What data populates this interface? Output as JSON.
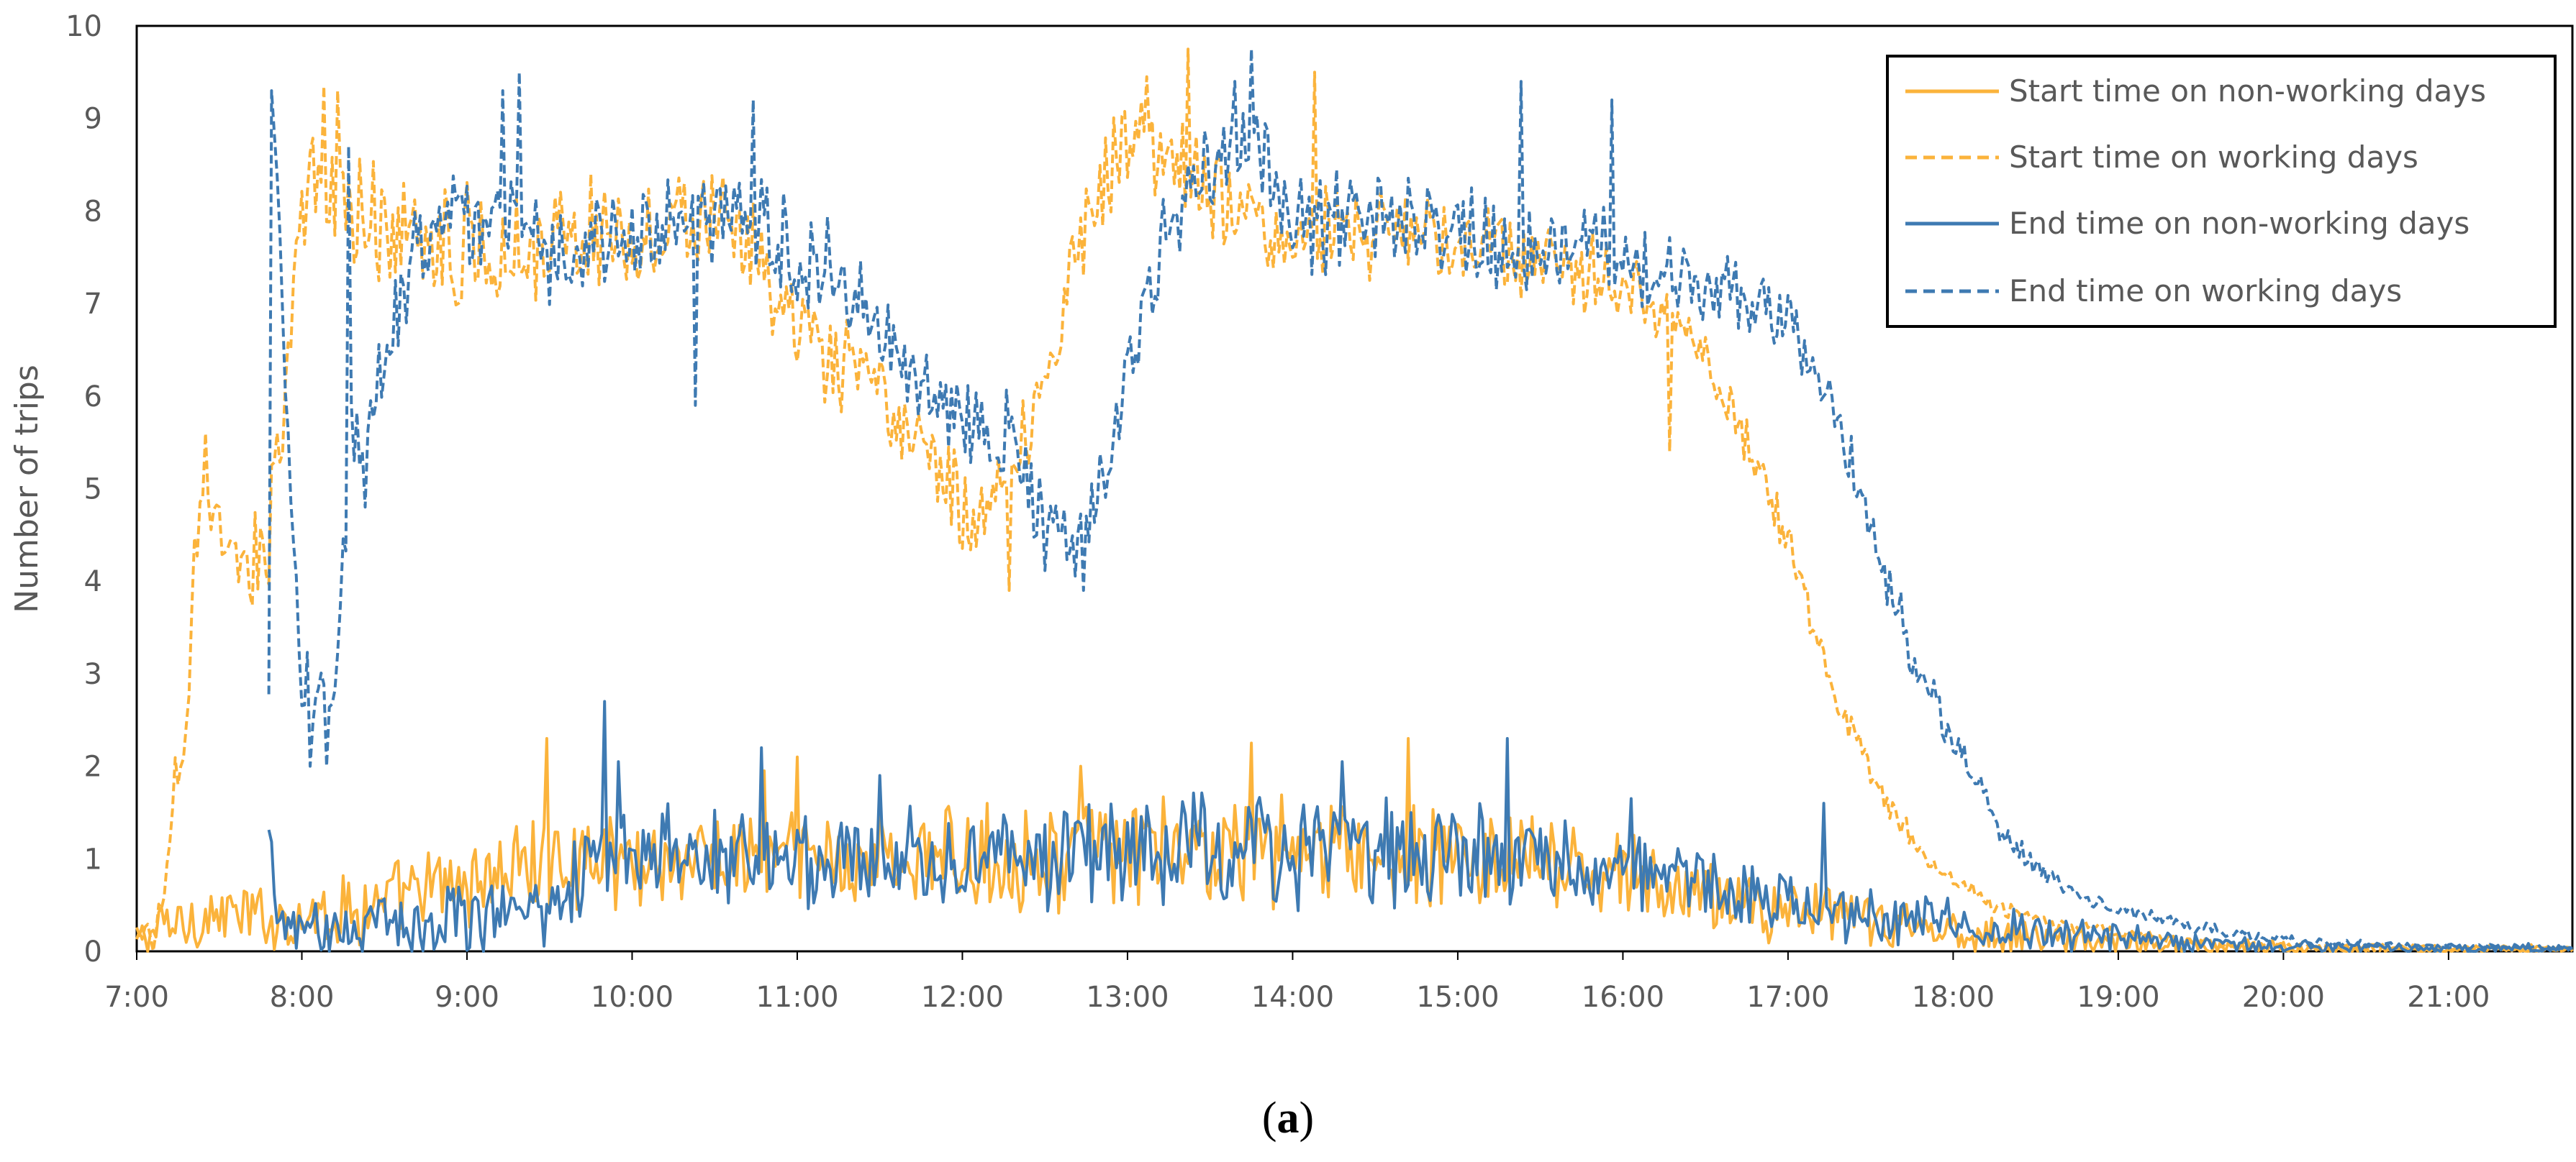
{
  "chart_data": {
    "type": "line",
    "title": "",
    "xlabel": "",
    "ylabel": "Number of trips",
    "ylim": [
      0,
      10
    ],
    "xlim_hours": [
      7.0,
      21.75
    ],
    "yticks": [
      "0",
      "1",
      "2",
      "3",
      "4",
      "5",
      "6",
      "7",
      "8",
      "9",
      "10"
    ],
    "xticks": [
      "7:00",
      "8:00",
      "9:00",
      "10:00",
      "11:00",
      "12:00",
      "13:00",
      "14:00",
      "15:00",
      "16:00",
      "17:00",
      "18:00",
      "19:00",
      "20:00",
      "21:00"
    ],
    "caption": {
      "open": "(",
      "letter": "a",
      "close": ")"
    },
    "colors": {
      "start": "#FBB33B",
      "end": "#3E7AB2"
    },
    "series": [
      {
        "name": "Start time on non-working days",
        "style": "solid",
        "color": "#FBB33B",
        "start_hour": 7.0,
        "end_hour": 21.75,
        "points": [
          [
            7.0,
            0.1
          ],
          [
            7.2,
            0.3
          ],
          [
            7.5,
            0.4
          ],
          [
            7.8,
            0.35
          ],
          [
            8.0,
            0.4
          ],
          [
            8.5,
            0.5
          ],
          [
            9.0,
            0.75
          ],
          [
            9.5,
            1.0
          ],
          [
            10.0,
            1.0
          ],
          [
            11.0,
            1.0
          ],
          [
            12.0,
            1.0
          ],
          [
            13.0,
            1.05
          ],
          [
            14.0,
            1.1
          ],
          [
            15.0,
            1.0
          ],
          [
            16.0,
            0.8
          ],
          [
            16.5,
            0.6
          ],
          [
            17.0,
            0.45
          ],
          [
            17.5,
            0.3
          ],
          [
            18.0,
            0.22
          ],
          [
            18.5,
            0.15
          ],
          [
            19.0,
            0.1
          ],
          [
            19.5,
            0.06
          ],
          [
            20.0,
            0.04
          ],
          [
            21.0,
            0.02
          ],
          [
            21.75,
            0.02
          ]
        ],
        "amp_points": [
          [
            7.0,
            0.25
          ],
          [
            8.0,
            0.3
          ],
          [
            9.0,
            0.4
          ],
          [
            10.0,
            0.45
          ],
          [
            12.0,
            0.45
          ],
          [
            14.0,
            0.5
          ],
          [
            16.0,
            0.4
          ],
          [
            17.0,
            0.3
          ],
          [
            18.0,
            0.2
          ],
          [
            19.0,
            0.1
          ],
          [
            20.0,
            0.06
          ],
          [
            21.75,
            0.04
          ]
        ],
        "spikes": [
          [
            9.48,
            2.3
          ],
          [
            10.8,
            1.95
          ],
          [
            11.0,
            2.1
          ],
          [
            12.72,
            2.0
          ],
          [
            13.75,
            2.25
          ],
          [
            14.7,
            2.3
          ]
        ]
      },
      {
        "name": "Start time on working days",
        "style": "dashed",
        "color": "#FBB33B",
        "start_hour": 7.0,
        "end_hour": 21.75,
        "points": [
          [
            7.0,
            0.1
          ],
          [
            7.1,
            0.1
          ],
          [
            7.15,
            0.4
          ],
          [
            7.22,
            1.8
          ],
          [
            7.3,
            2.5
          ],
          [
            7.35,
            4.3
          ],
          [
            7.45,
            4.5
          ],
          [
            7.55,
            4.3
          ],
          [
            7.7,
            4.0
          ],
          [
            7.8,
            4.6
          ],
          [
            7.9,
            6.2
          ],
          [
            8.0,
            7.9
          ],
          [
            8.1,
            8.3
          ],
          [
            8.25,
            8.0
          ],
          [
            8.5,
            7.9
          ],
          [
            9.0,
            7.6
          ],
          [
            9.5,
            7.7
          ],
          [
            10.0,
            7.8
          ],
          [
            10.5,
            7.9
          ],
          [
            10.75,
            7.5
          ],
          [
            11.0,
            6.6
          ],
          [
            11.5,
            6.0
          ],
          [
            11.75,
            5.4
          ],
          [
            12.0,
            4.8
          ],
          [
            12.15,
            4.7
          ],
          [
            12.3,
            5.3
          ],
          [
            12.5,
            6.2
          ],
          [
            12.7,
            7.6
          ],
          [
            12.9,
            8.6
          ],
          [
            13.1,
            8.8
          ],
          [
            13.3,
            8.6
          ],
          [
            13.5,
            8.1
          ],
          [
            14.0,
            7.8
          ],
          [
            14.5,
            7.8
          ],
          [
            15.0,
            7.6
          ],
          [
            15.5,
            7.4
          ],
          [
            16.0,
            7.2
          ],
          [
            16.3,
            6.8
          ],
          [
            16.6,
            6.2
          ],
          [
            16.8,
            5.3
          ],
          [
            17.0,
            4.4
          ],
          [
            17.15,
            3.5
          ],
          [
            17.3,
            2.7
          ],
          [
            17.45,
            2.1
          ],
          [
            17.6,
            1.6
          ],
          [
            17.8,
            1.1
          ],
          [
            18.0,
            0.75
          ],
          [
            18.3,
            0.45
          ],
          [
            18.6,
            0.3
          ],
          [
            19.0,
            0.2
          ],
          [
            19.5,
            0.1
          ],
          [
            20.0,
            0.05
          ],
          [
            21.0,
            0.03
          ],
          [
            21.75,
            0.02
          ]
        ],
        "amp_points": [
          [
            7.0,
            0.15
          ],
          [
            7.3,
            0.5
          ],
          [
            8.0,
            0.5
          ],
          [
            9.0,
            0.55
          ],
          [
            10.0,
            0.5
          ],
          [
            11.0,
            0.45
          ],
          [
            12.0,
            0.45
          ],
          [
            13.0,
            0.45
          ],
          [
            14.0,
            0.45
          ],
          [
            16.0,
            0.35
          ],
          [
            17.0,
            0.2
          ],
          [
            18.0,
            0.1
          ],
          [
            19.0,
            0.05
          ],
          [
            21.75,
            0.02
          ]
        ],
        "spikes": [
          [
            7.42,
            5.6
          ],
          [
            8.13,
            9.35
          ],
          [
            8.22,
            9.3
          ],
          [
            12.28,
            3.9
          ],
          [
            13.12,
            9.45
          ],
          [
            13.37,
            9.75
          ],
          [
            14.13,
            9.5
          ],
          [
            16.28,
            5.4
          ]
        ]
      },
      {
        "name": "End time on non-working days",
        "style": "solid",
        "color": "#3E7AB2",
        "start_hour": 7.8,
        "end_hour": 21.75,
        "points": [
          [
            7.8,
            1.2
          ],
          [
            7.85,
            0.4
          ],
          [
            8.0,
            0.2
          ],
          [
            8.5,
            0.3
          ],
          [
            9.0,
            0.4
          ],
          [
            9.5,
            0.55
          ],
          [
            9.8,
            1.1
          ],
          [
            10.0,
            0.95
          ],
          [
            10.5,
            1.05
          ],
          [
            11.0,
            1.05
          ],
          [
            12.0,
            1.0
          ],
          [
            13.0,
            1.05
          ],
          [
            14.0,
            1.1
          ],
          [
            15.0,
            1.05
          ],
          [
            15.5,
            0.95
          ],
          [
            16.0,
            0.9
          ],
          [
            16.5,
            0.75
          ],
          [
            17.0,
            0.55
          ],
          [
            17.5,
            0.4
          ],
          [
            18.0,
            0.3
          ],
          [
            18.5,
            0.2
          ],
          [
            19.0,
            0.15
          ],
          [
            19.5,
            0.08
          ],
          [
            20.0,
            0.05
          ],
          [
            21.0,
            0.03
          ],
          [
            21.75,
            0.03
          ]
        ],
        "amp_points": [
          [
            7.8,
            0.2
          ],
          [
            8.5,
            0.3
          ],
          [
            9.0,
            0.35
          ],
          [
            10.0,
            0.45
          ],
          [
            12.0,
            0.45
          ],
          [
            14.0,
            0.5
          ],
          [
            15.5,
            0.45
          ],
          [
            16.5,
            0.35
          ],
          [
            17.5,
            0.3
          ],
          [
            18.5,
            0.15
          ],
          [
            20.0,
            0.06
          ],
          [
            21.75,
            0.04
          ]
        ],
        "spikes": [
          [
            9.83,
            2.7
          ],
          [
            9.92,
            2.05
          ],
          [
            10.79,
            2.2
          ],
          [
            11.5,
            1.9
          ],
          [
            14.3,
            2.05
          ],
          [
            15.3,
            2.3
          ],
          [
            16.05,
            1.65
          ],
          [
            17.22,
            1.6
          ]
        ]
      },
      {
        "name": "End time on working days",
        "style": "dashed",
        "color": "#3E7AB2",
        "start_hour": 7.8,
        "end_hour": 21.75,
        "points": [
          [
            7.8,
            2.5
          ],
          [
            7.83,
            9.2
          ],
          [
            7.9,
            6.0
          ],
          [
            8.0,
            2.8
          ],
          [
            8.1,
            2.6
          ],
          [
            8.2,
            2.7
          ],
          [
            8.3,
            5.5
          ],
          [
            8.5,
            6.5
          ],
          [
            8.75,
            7.8
          ],
          [
            9.0,
            8.0
          ],
          [
            9.5,
            7.6
          ],
          [
            10.0,
            7.7
          ],
          [
            10.5,
            7.9
          ],
          [
            11.0,
            7.6
          ],
          [
            11.3,
            7.2
          ],
          [
            11.6,
            6.5
          ],
          [
            12.0,
            5.8
          ],
          [
            12.3,
            5.6
          ],
          [
            12.5,
            4.6
          ],
          [
            12.75,
            4.5
          ],
          [
            12.9,
            5.4
          ],
          [
            13.1,
            6.9
          ],
          [
            13.3,
            8.0
          ],
          [
            13.6,
            8.6
          ],
          [
            13.8,
            8.5
          ],
          [
            14.0,
            7.9
          ],
          [
            14.5,
            7.9
          ],
          [
            15.0,
            7.8
          ],
          [
            15.5,
            7.6
          ],
          [
            16.0,
            7.5
          ],
          [
            16.4,
            7.3
          ],
          [
            16.7,
            7.1
          ],
          [
            17.0,
            6.8
          ],
          [
            17.2,
            6.2
          ],
          [
            17.4,
            5.2
          ],
          [
            17.6,
            4.0
          ],
          [
            17.8,
            3.0
          ],
          [
            18.0,
            2.3
          ],
          [
            18.15,
            1.9
          ],
          [
            18.25,
            1.4
          ],
          [
            18.5,
            0.9
          ],
          [
            18.8,
            0.55
          ],
          [
            19.0,
            0.45
          ],
          [
            19.5,
            0.25
          ],
          [
            20.0,
            0.12
          ],
          [
            20.5,
            0.07
          ],
          [
            21.0,
            0.05
          ],
          [
            21.75,
            0.03
          ]
        ],
        "amp_points": [
          [
            7.8,
            0.3
          ],
          [
            8.4,
            0.5
          ],
          [
            9.0,
            0.55
          ],
          [
            10.0,
            0.5
          ],
          [
            11.0,
            0.5
          ],
          [
            12.0,
            0.45
          ],
          [
            13.0,
            0.45
          ],
          [
            14.0,
            0.5
          ],
          [
            15.0,
            0.45
          ],
          [
            16.0,
            0.4
          ],
          [
            17.0,
            0.3
          ],
          [
            17.5,
            0.25
          ],
          [
            18.0,
            0.2
          ],
          [
            18.3,
            0.12
          ],
          [
            19.0,
            0.06
          ],
          [
            21.75,
            0.02
          ]
        ],
        "spikes": [
          [
            7.82,
            9.3
          ],
          [
            8.05,
            2.0
          ],
          [
            8.15,
            2.0
          ],
          [
            8.28,
            8.7
          ],
          [
            8.38,
            4.8
          ],
          [
            9.22,
            9.3
          ],
          [
            9.32,
            9.5
          ],
          [
            10.38,
            5.9
          ],
          [
            10.73,
            9.2
          ],
          [
            12.73,
            3.9
          ],
          [
            13.65,
            9.4
          ],
          [
            13.75,
            9.75
          ],
          [
            15.38,
            9.4
          ],
          [
            15.93,
            9.2
          ]
        ]
      }
    ]
  }
}
